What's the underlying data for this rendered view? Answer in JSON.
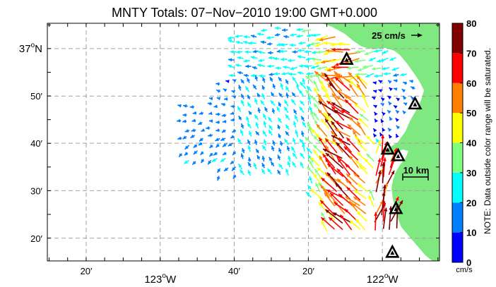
{
  "title": "MNTY Totals: 07−Nov−2010 19:00 GMT+0.000",
  "latitude_labels": [
    {
      "text": "37",
      "suffix": "N",
      "degree": true,
      "lat": 37.0
    },
    {
      "text": "50′",
      "lat": 36.833
    },
    {
      "text": "40′",
      "lat": 36.667
    },
    {
      "text": "30′",
      "lat": 36.5
    },
    {
      "text": "20′",
      "lat": 36.333
    }
  ],
  "longitude_labels": [
    {
      "text": "20′",
      "lon": -123.333
    },
    {
      "text": "123",
      "suffix": "W",
      "degree": true,
      "lon": -123.0
    },
    {
      "text": "40′",
      "lon": -122.667
    },
    {
      "text": "20′",
      "lon": -122.333
    },
    {
      "text": "122",
      "suffix": "W",
      "degree": true,
      "lon": -122.0
    }
  ],
  "reference_vector_label": "25 cm/s",
  "scale_bar_label": "10 km",
  "colorbar": {
    "ticks": [
      "0",
      "10",
      "20",
      "30",
      "40",
      "50",
      "60",
      "70",
      "80"
    ],
    "unit": "cm/s",
    "colors": [
      "#0000ff",
      "#0080ff",
      "#00ffff",
      "#80ff80",
      "#ffff00",
      "#ff8000",
      "#ff0000",
      "#800000"
    ],
    "note": "NOTE: Data outside color range will be saturated."
  },
  "colors": {
    "land": "#80e880",
    "grid": "#a0a0a0",
    "site_marker_fill": "#ffffff",
    "site_marker_stroke": "#000000"
  },
  "icons": {
    "site_marker": "triangle-site-icon",
    "vector": "arrow-icon"
  },
  "sites": [
    {
      "lat": 36.961,
      "lon": -122.161
    },
    {
      "lat": 36.804,
      "lon": -121.853
    },
    {
      "lat": 36.645,
      "lon": -121.976
    },
    {
      "lat": 36.622,
      "lon": -121.929
    },
    {
      "lat": 36.436,
      "lon": -121.939
    },
    {
      "lat": 36.282,
      "lon": -121.955
    }
  ]
}
